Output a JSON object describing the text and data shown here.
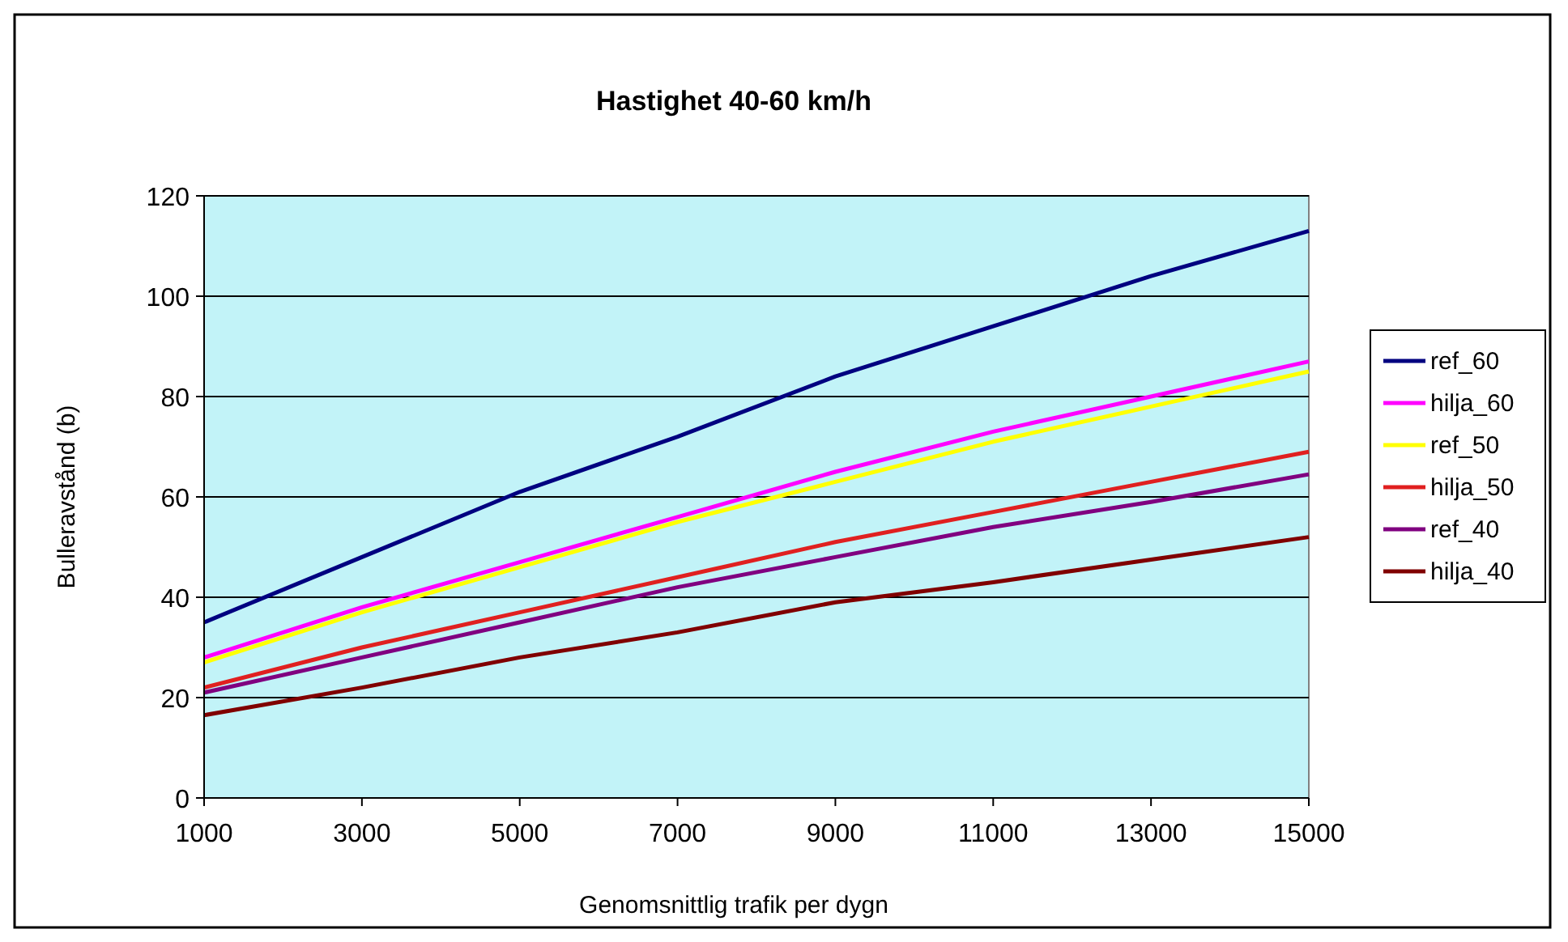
{
  "chart_data": {
    "type": "line",
    "title": "Hastighet 40-60 km/h",
    "xlabel": "Genomsnittlig trafik per dygn",
    "ylabel": "Bulleravstånd (b)",
    "x": [
      1000,
      3000,
      5000,
      7000,
      9000,
      11000,
      13000,
      15000
    ],
    "xlim": [
      1000,
      15000
    ],
    "xticks": [
      1000,
      3000,
      5000,
      7000,
      9000,
      11000,
      13000,
      15000
    ],
    "ylim": [
      0,
      120
    ],
    "yticks": [
      0,
      20,
      40,
      60,
      80,
      100,
      120
    ],
    "grid": "y",
    "legend": "right",
    "marker": "none",
    "line_style": "solid",
    "series": [
      {
        "name": "ref_60",
        "color": "#000080",
        "values": [
          35,
          48,
          61,
          72,
          84,
          94,
          104,
          113
        ]
      },
      {
        "name": "hilja_60",
        "color": "#ff00ff",
        "values": [
          28,
          38,
          47,
          56,
          65,
          73,
          80,
          87
        ]
      },
      {
        "name": "ref_50",
        "color": "#ffff00",
        "values": [
          27,
          37,
          46,
          55,
          63,
          71,
          78,
          85
        ]
      },
      {
        "name": "hilja_50",
        "color": "#e02020",
        "values": [
          22,
          30,
          37,
          44,
          51,
          57,
          63,
          69
        ]
      },
      {
        "name": "ref_40",
        "color": "#800080",
        "values": [
          21,
          28,
          35,
          42,
          48,
          54,
          59,
          64.5
        ]
      },
      {
        "name": "hilja_40",
        "color": "#800000",
        "values": [
          16.5,
          22,
          28,
          33,
          39,
          43,
          47.5,
          52
        ]
      }
    ]
  }
}
